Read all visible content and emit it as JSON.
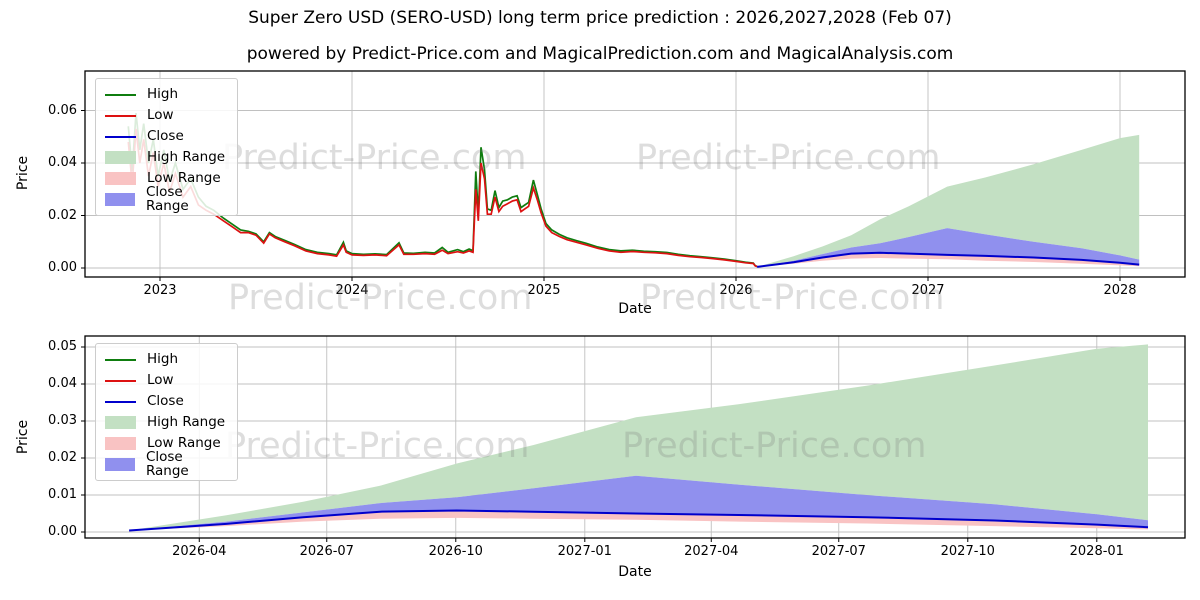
{
  "title": "Super Zero USD (SERO-USD) long term price prediction : 2026,2027,2028 (Feb 07)",
  "subtitle": "powered by Predict-Price.com and MagicalPrediction.com and MagicalAnalysis.com",
  "watermark": {
    "text": "Predict-Price.com"
  },
  "colors": {
    "high_line": "#0f7d0f",
    "low_line": "#dd1111",
    "close_line": "#0000cc",
    "high_range_fill": "#c3e0c3",
    "low_range_fill": "#f9c3c3",
    "close_range_fill": "#9090ee",
    "grid": "#c0c0c0",
    "frame": "#000000",
    "watermark_gray": "#dadada"
  },
  "legend": {
    "entries": [
      {
        "label": "High",
        "type": "line",
        "color": "#0f7d0f"
      },
      {
        "label": "Low",
        "type": "line",
        "color": "#dd1111"
      },
      {
        "label": "Close",
        "type": "line",
        "color": "#0000cc"
      },
      {
        "label": "High Range",
        "type": "patch",
        "color": "#c3e0c3"
      },
      {
        "label": "Low Range",
        "type": "patch",
        "color": "#f9c3c3"
      },
      {
        "label": "Close Range",
        "type": "patch",
        "color": "#9090ee"
      }
    ]
  },
  "charts": [
    {
      "xlabel": "Date",
      "ylabel": "Price"
    },
    {
      "xlabel": "Date",
      "ylabel": "Price"
    }
  ],
  "chart_data": [
    {
      "type": "line",
      "name": "overview-history-and-forecast",
      "xlabel": "Date",
      "ylabel": "Price",
      "grid": true,
      "legend_position": "upper-left",
      "xlim": [
        2022.61,
        2028.34
      ],
      "ylim": [
        -0.0034,
        0.075
      ],
      "xticks": [
        {
          "pos": 2023,
          "label": "2023"
        },
        {
          "pos": 2024,
          "label": "2024"
        },
        {
          "pos": 2025,
          "label": "2025"
        },
        {
          "pos": 2026,
          "label": "2026"
        },
        {
          "pos": 2027,
          "label": "2027"
        },
        {
          "pos": 2028,
          "label": "2028"
        }
      ],
      "yticks": [
        {
          "pos": 0.0,
          "label": "0.00"
        },
        {
          "pos": 0.02,
          "label": "0.02"
        },
        {
          "pos": 0.04,
          "label": "0.04"
        },
        {
          "pos": 0.06,
          "label": "0.06"
        }
      ],
      "history_series_format": [
        "year",
        "low",
        "high"
      ],
      "history": [
        [
          2022.835,
          0.048,
          0.054
        ],
        [
          2022.855,
          0.032,
          0.037
        ],
        [
          2022.875,
          0.053,
          0.059
        ],
        [
          2022.895,
          0.04,
          0.045
        ],
        [
          2022.915,
          0.049,
          0.055
        ],
        [
          2022.94,
          0.035,
          0.04
        ],
        [
          2022.965,
          0.044,
          0.049
        ],
        [
          2022.99,
          0.031,
          0.035
        ],
        [
          2023.02,
          0.04,
          0.045
        ],
        [
          2023.05,
          0.029,
          0.033
        ],
        [
          2023.08,
          0.036,
          0.04
        ],
        [
          2023.12,
          0.027,
          0.03
        ],
        [
          2023.16,
          0.031,
          0.034
        ],
        [
          2023.2,
          0.024,
          0.027
        ],
        [
          2023.24,
          0.022,
          0.0235
        ],
        [
          2023.28,
          0.0205,
          0.022
        ],
        [
          2023.33,
          0.018,
          0.019
        ],
        [
          2023.38,
          0.0155,
          0.0165
        ],
        [
          2023.42,
          0.0135,
          0.0145
        ],
        [
          2023.46,
          0.0135,
          0.014
        ],
        [
          2023.5,
          0.0125,
          0.013
        ],
        [
          2023.54,
          0.0095,
          0.01
        ],
        [
          2023.57,
          0.013,
          0.0135
        ],
        [
          2023.6,
          0.0115,
          0.012
        ],
        [
          2023.65,
          0.01,
          0.0105
        ],
        [
          2023.7,
          0.0085,
          0.009
        ],
        [
          2023.76,
          0.0065,
          0.007
        ],
        [
          2023.82,
          0.0055,
          0.006
        ],
        [
          2023.88,
          0.005,
          0.0055
        ],
        [
          2023.92,
          0.0045,
          0.005
        ],
        [
          2023.955,
          0.0088,
          0.0098
        ],
        [
          2023.97,
          0.006,
          0.0065
        ],
        [
          2024.0,
          0.005,
          0.0055
        ],
        [
          2024.06,
          0.0048,
          0.0052
        ],
        [
          2024.12,
          0.005,
          0.0054
        ],
        [
          2024.18,
          0.0047,
          0.0051
        ],
        [
          2024.245,
          0.0088,
          0.0096
        ],
        [
          2024.27,
          0.0052,
          0.0057
        ],
        [
          2024.32,
          0.0052,
          0.0056
        ],
        [
          2024.38,
          0.0055,
          0.006
        ],
        [
          2024.43,
          0.0052,
          0.0057
        ],
        [
          2024.47,
          0.0068,
          0.0078
        ],
        [
          2024.5,
          0.0055,
          0.006
        ],
        [
          2024.55,
          0.0062,
          0.007
        ],
        [
          2024.58,
          0.0057,
          0.0062
        ],
        [
          2024.61,
          0.0065,
          0.0072
        ],
        [
          2024.63,
          0.006,
          0.0066
        ],
        [
          2024.645,
          0.03,
          0.0368
        ],
        [
          2024.658,
          0.018,
          0.0205
        ],
        [
          2024.672,
          0.04,
          0.046
        ],
        [
          2024.69,
          0.034,
          0.0375
        ],
        [
          2024.705,
          0.0205,
          0.0225
        ],
        [
          2024.725,
          0.0205,
          0.022
        ],
        [
          2024.745,
          0.027,
          0.0295
        ],
        [
          2024.765,
          0.0215,
          0.023
        ],
        [
          2024.785,
          0.0235,
          0.0255
        ],
        [
          2024.81,
          0.0245,
          0.026
        ],
        [
          2024.835,
          0.0255,
          0.027
        ],
        [
          2024.86,
          0.026,
          0.0275
        ],
        [
          2024.88,
          0.0215,
          0.023
        ],
        [
          2024.9,
          0.0225,
          0.024
        ],
        [
          2024.92,
          0.0235,
          0.025
        ],
        [
          2024.945,
          0.0305,
          0.0335
        ],
        [
          2024.965,
          0.026,
          0.028
        ],
        [
          2024.985,
          0.021,
          0.0225
        ],
        [
          2025.01,
          0.016,
          0.017
        ],
        [
          2025.04,
          0.0135,
          0.0145
        ],
        [
          2025.08,
          0.012,
          0.0128
        ],
        [
          2025.12,
          0.0108,
          0.0115
        ],
        [
          2025.17,
          0.0098,
          0.0104
        ],
        [
          2025.22,
          0.0088,
          0.0094
        ],
        [
          2025.28,
          0.0075,
          0.008
        ],
        [
          2025.34,
          0.0065,
          0.007
        ],
        [
          2025.4,
          0.006,
          0.0065
        ],
        [
          2025.46,
          0.0063,
          0.0068
        ],
        [
          2025.52,
          0.006,
          0.0064
        ],
        [
          2025.58,
          0.0058,
          0.0062
        ],
        [
          2025.64,
          0.0055,
          0.0059
        ],
        [
          2025.7,
          0.0048,
          0.0052
        ],
        [
          2025.76,
          0.0043,
          0.0047
        ],
        [
          2025.82,
          0.004,
          0.0043
        ],
        [
          2025.88,
          0.0036,
          0.0039
        ],
        [
          2025.94,
          0.0031,
          0.0034
        ],
        [
          2026.0,
          0.0025,
          0.0028
        ],
        [
          2026.05,
          0.002,
          0.0022
        ],
        [
          2026.09,
          0.0017,
          0.0019
        ],
        [
          2026.1,
          0.0008,
          0.0009
        ],
        [
          2026.11,
          0.00055,
          0.0006
        ]
      ],
      "forecast_series_format": [
        "year",
        "close",
        "close_range_top",
        "low_range_bottom",
        "high_range_top"
      ],
      "forecast": [
        [
          2026.11,
          0.0004,
          0.0004,
          0.0004,
          0.0004
        ],
        [
          2026.3,
          0.0022,
          0.0028,
          0.0016,
          0.0045
        ],
        [
          2026.45,
          0.004,
          0.0053,
          0.0028,
          0.0082
        ],
        [
          2026.6,
          0.0055,
          0.0078,
          0.0036,
          0.0125
        ],
        [
          2026.75,
          0.0058,
          0.0094,
          0.0038,
          0.0185
        ],
        [
          2026.9,
          0.0055,
          0.0118,
          0.0036,
          0.0235
        ],
        [
          2027.1,
          0.005,
          0.0152,
          0.0033,
          0.031
        ],
        [
          2027.3,
          0.0046,
          0.0128,
          0.0028,
          0.0345
        ],
        [
          2027.55,
          0.004,
          0.01,
          0.0023,
          0.0395
        ],
        [
          2027.8,
          0.0031,
          0.0075,
          0.0016,
          0.045
        ],
        [
          2028.0,
          0.002,
          0.0048,
          0.001,
          0.0495
        ],
        [
          2028.1,
          0.0013,
          0.0032,
          0.0007,
          0.0507
        ]
      ]
    },
    {
      "type": "area",
      "name": "forecast-detail",
      "xlabel": "Date",
      "ylabel": "Price",
      "grid": true,
      "legend_position": "upper-left",
      "xlim": [
        2026.02,
        2028.17
      ],
      "ylim": [
        -0.0016,
        0.053
      ],
      "xticks": [
        {
          "pos": 2026.247,
          "label": "2026-04"
        },
        {
          "pos": 2026.496,
          "label": "2026-07"
        },
        {
          "pos": 2026.748,
          "label": "2026-10"
        },
        {
          "pos": 2027.0,
          "label": "2027-01"
        },
        {
          "pos": 2027.247,
          "label": "2027-04"
        },
        {
          "pos": 2027.496,
          "label": "2027-07"
        },
        {
          "pos": 2027.748,
          "label": "2027-10"
        },
        {
          "pos": 2028.0,
          "label": "2028-01"
        }
      ],
      "yticks": [
        {
          "pos": 0.0,
          "label": "0.00"
        },
        {
          "pos": 0.01,
          "label": "0.01"
        },
        {
          "pos": 0.02,
          "label": "0.02"
        },
        {
          "pos": 0.03,
          "label": "0.03"
        },
        {
          "pos": 0.04,
          "label": "0.04"
        },
        {
          "pos": 0.05,
          "label": "0.05"
        }
      ],
      "forecast_series_format": [
        "year",
        "close",
        "close_range_top",
        "low_range_bottom",
        "high_range_top"
      ],
      "forecast": [
        [
          2026.11,
          0.0004,
          0.0004,
          0.0004,
          0.0004
        ],
        [
          2026.3,
          0.0022,
          0.0028,
          0.0016,
          0.0045
        ],
        [
          2026.45,
          0.004,
          0.0053,
          0.0028,
          0.0082
        ],
        [
          2026.6,
          0.0055,
          0.0078,
          0.0036,
          0.0125
        ],
        [
          2026.75,
          0.0058,
          0.0094,
          0.0038,
          0.0185
        ],
        [
          2026.9,
          0.0055,
          0.0118,
          0.0036,
          0.0235
        ],
        [
          2027.1,
          0.005,
          0.0152,
          0.0033,
          0.031
        ],
        [
          2027.3,
          0.0046,
          0.0128,
          0.0028,
          0.0345
        ],
        [
          2027.55,
          0.004,
          0.01,
          0.0023,
          0.0395
        ],
        [
          2027.8,
          0.0031,
          0.0075,
          0.0016,
          0.045
        ],
        [
          2028.0,
          0.002,
          0.0048,
          0.001,
          0.0495
        ],
        [
          2028.1,
          0.0013,
          0.0032,
          0.0007,
          0.0507
        ]
      ]
    }
  ]
}
